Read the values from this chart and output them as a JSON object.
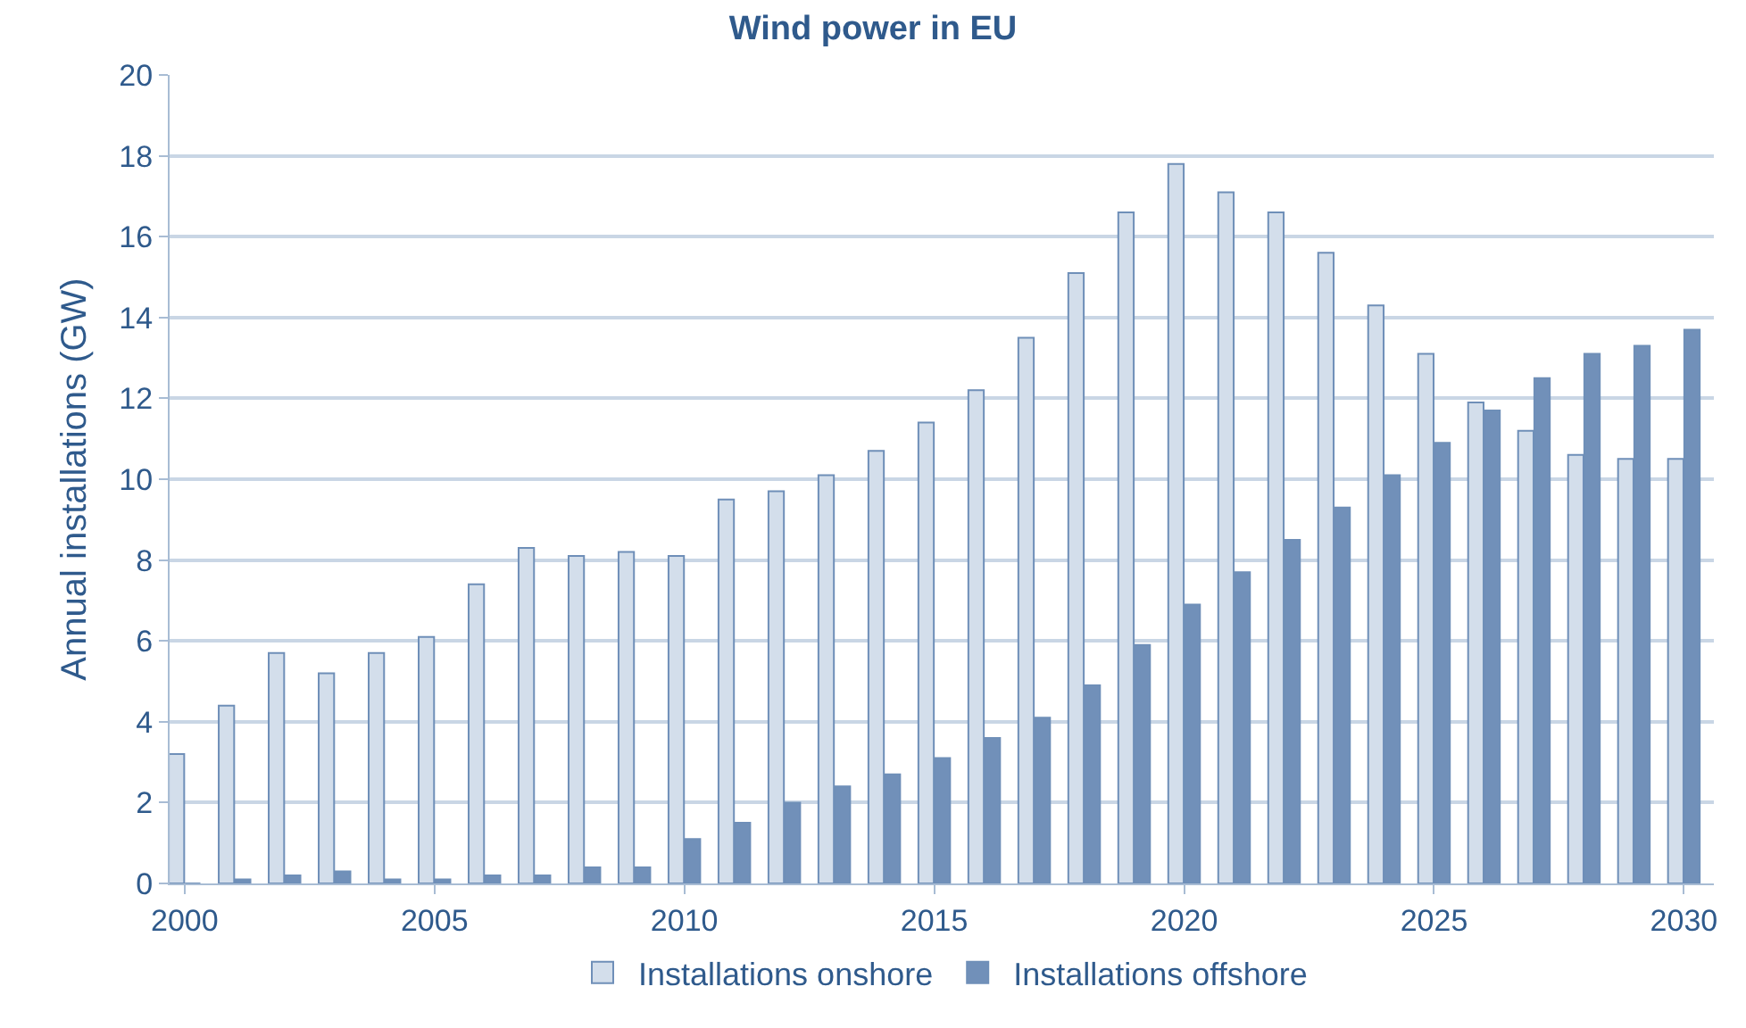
{
  "chart_data": {
    "type": "bar",
    "title": "Wind power in EU",
    "ylabel": "Annual installations (GW)",
    "x": [
      2000,
      2001,
      2002,
      2003,
      2004,
      2005,
      2006,
      2007,
      2008,
      2009,
      2010,
      2011,
      2012,
      2013,
      2014,
      2015,
      2016,
      2017,
      2018,
      2019,
      2020,
      2021,
      2022,
      2023,
      2024,
      2025,
      2026,
      2027,
      2028,
      2029,
      2030
    ],
    "series": [
      {
        "name": "Installations onshore",
        "color": "#d3deeb",
        "values": [
          3.2,
          4.4,
          5.7,
          5.2,
          5.7,
          6.1,
          7.4,
          8.3,
          8.1,
          8.2,
          8.1,
          9.5,
          9.7,
          10.1,
          10.7,
          11.4,
          12.2,
          13.5,
          15.1,
          16.6,
          17.8,
          17.1,
          16.6,
          15.6,
          14.3,
          13.1,
          11.9,
          11.2,
          10.6,
          10.5,
          10.5
        ]
      },
      {
        "name": "Installations offshore",
        "color": "#7190b9",
        "values": [
          0,
          0.1,
          0.2,
          0.3,
          0.1,
          0.1,
          0.2,
          0.2,
          0.4,
          0.4,
          1.1,
          1.5,
          2.0,
          2.4,
          2.7,
          3.1,
          3.6,
          4.1,
          4.9,
          5.9,
          6.9,
          7.7,
          8.5,
          9.3,
          10.1,
          10.9,
          11.7,
          12.5,
          13.1,
          13.3,
          13.7
        ]
      }
    ],
    "xlim": [
      1999.7,
      2030.6
    ],
    "xticks": [
      2000,
      2005,
      2010,
      2015,
      2020,
      2025,
      2030
    ],
    "ylim": [
      0,
      20
    ],
    "yticks": [
      0,
      2,
      4,
      6,
      8,
      10,
      12,
      14,
      16,
      18,
      20
    ],
    "grid": "y",
    "legend": "bottom"
  }
}
